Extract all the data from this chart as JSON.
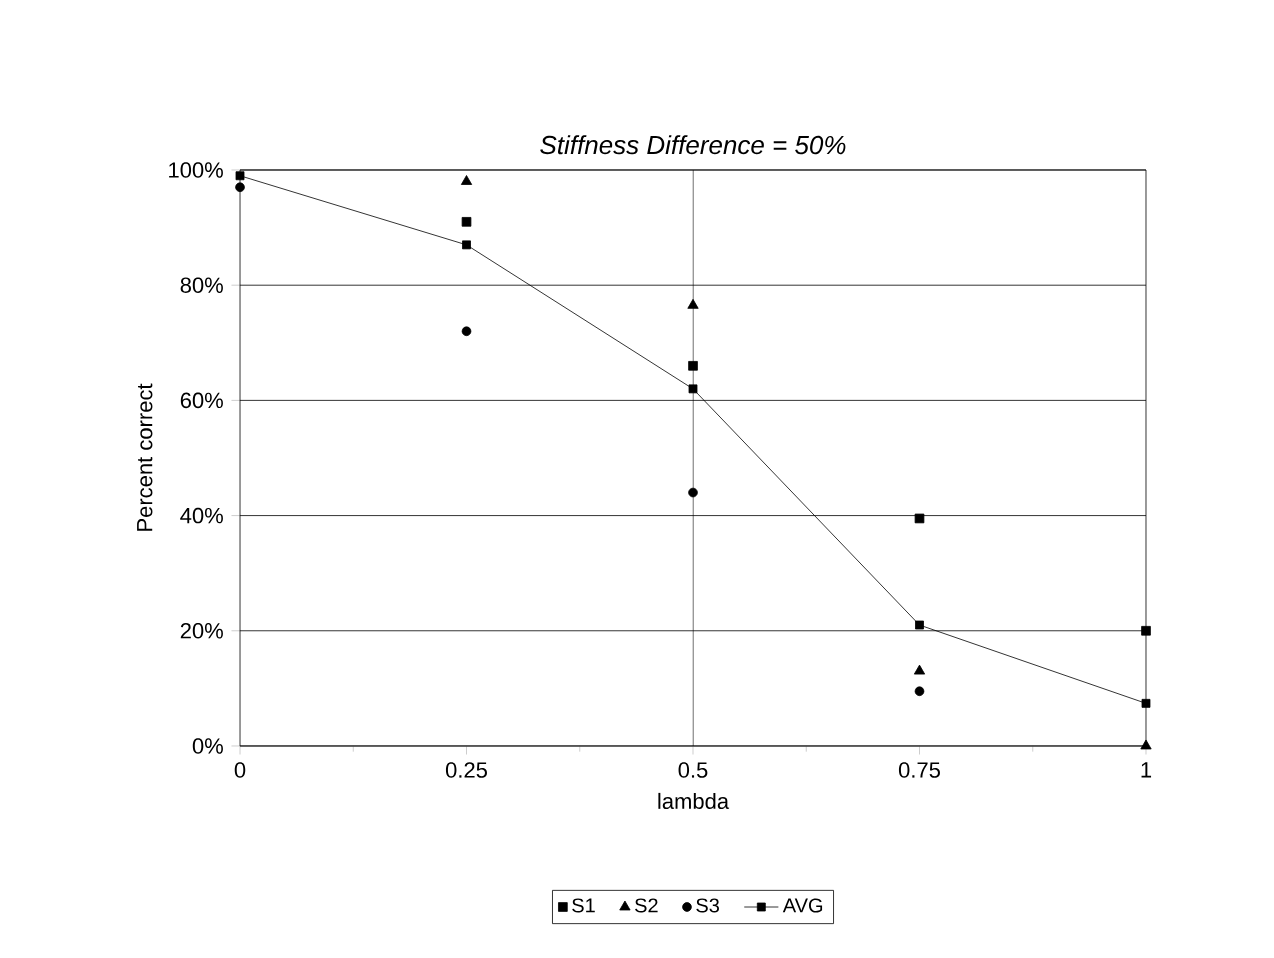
{
  "chart_data": {
    "type": "scatter",
    "title": "*Stiffness Difference = 50%*",
    "xlabel": "lambda",
    "ylabel": "Percent correct",
    "x": [
      0,
      0.25,
      0.5,
      0.75,
      1
    ],
    "series": [
      {
        "name": "S1",
        "color": "#000000",
        "marker": "square",
        "values": [
          null,
          91,
          66,
          39.5,
          20
        ]
      },
      {
        "name": "S2",
        "color": "#000000",
        "marker": "triangle",
        "values": [
          null,
          98,
          76.5,
          13,
          0
        ]
      },
      {
        "name": "S3",
        "color": "#000000",
        "marker": "circle",
        "values": [
          97,
          72,
          44,
          9.5,
          null
        ]
      },
      {
        "name": "AVG",
        "type": "line",
        "color": "#000000",
        "marker": "square",
        "line_style": "solid",
        "values": [
          99,
          87,
          62,
          21,
          7.4
        ]
      }
    ],
    "xlim": [
      0,
      1
    ],
    "xticks": [
      0,
      0.25,
      0.5,
      0.75,
      1
    ],
    "ylim": [
      0,
      100
    ],
    "yticks": [
      {
        "value": 0,
        "label": "0%"
      },
      {
        "value": 20,
        "label": "20%"
      },
      {
        "value": 40,
        "label": "40%"
      },
      {
        "value": 60,
        "label": "60%"
      },
      {
        "value": 80,
        "label": "80%"
      },
      {
        "value": 100,
        "label": "100%"
      }
    ],
    "grid": "y",
    "ref_lines": [
      {
        "axis": "x",
        "value": 0.5,
        "color": "#000000"
      }
    ],
    "legend": "bottom"
  }
}
